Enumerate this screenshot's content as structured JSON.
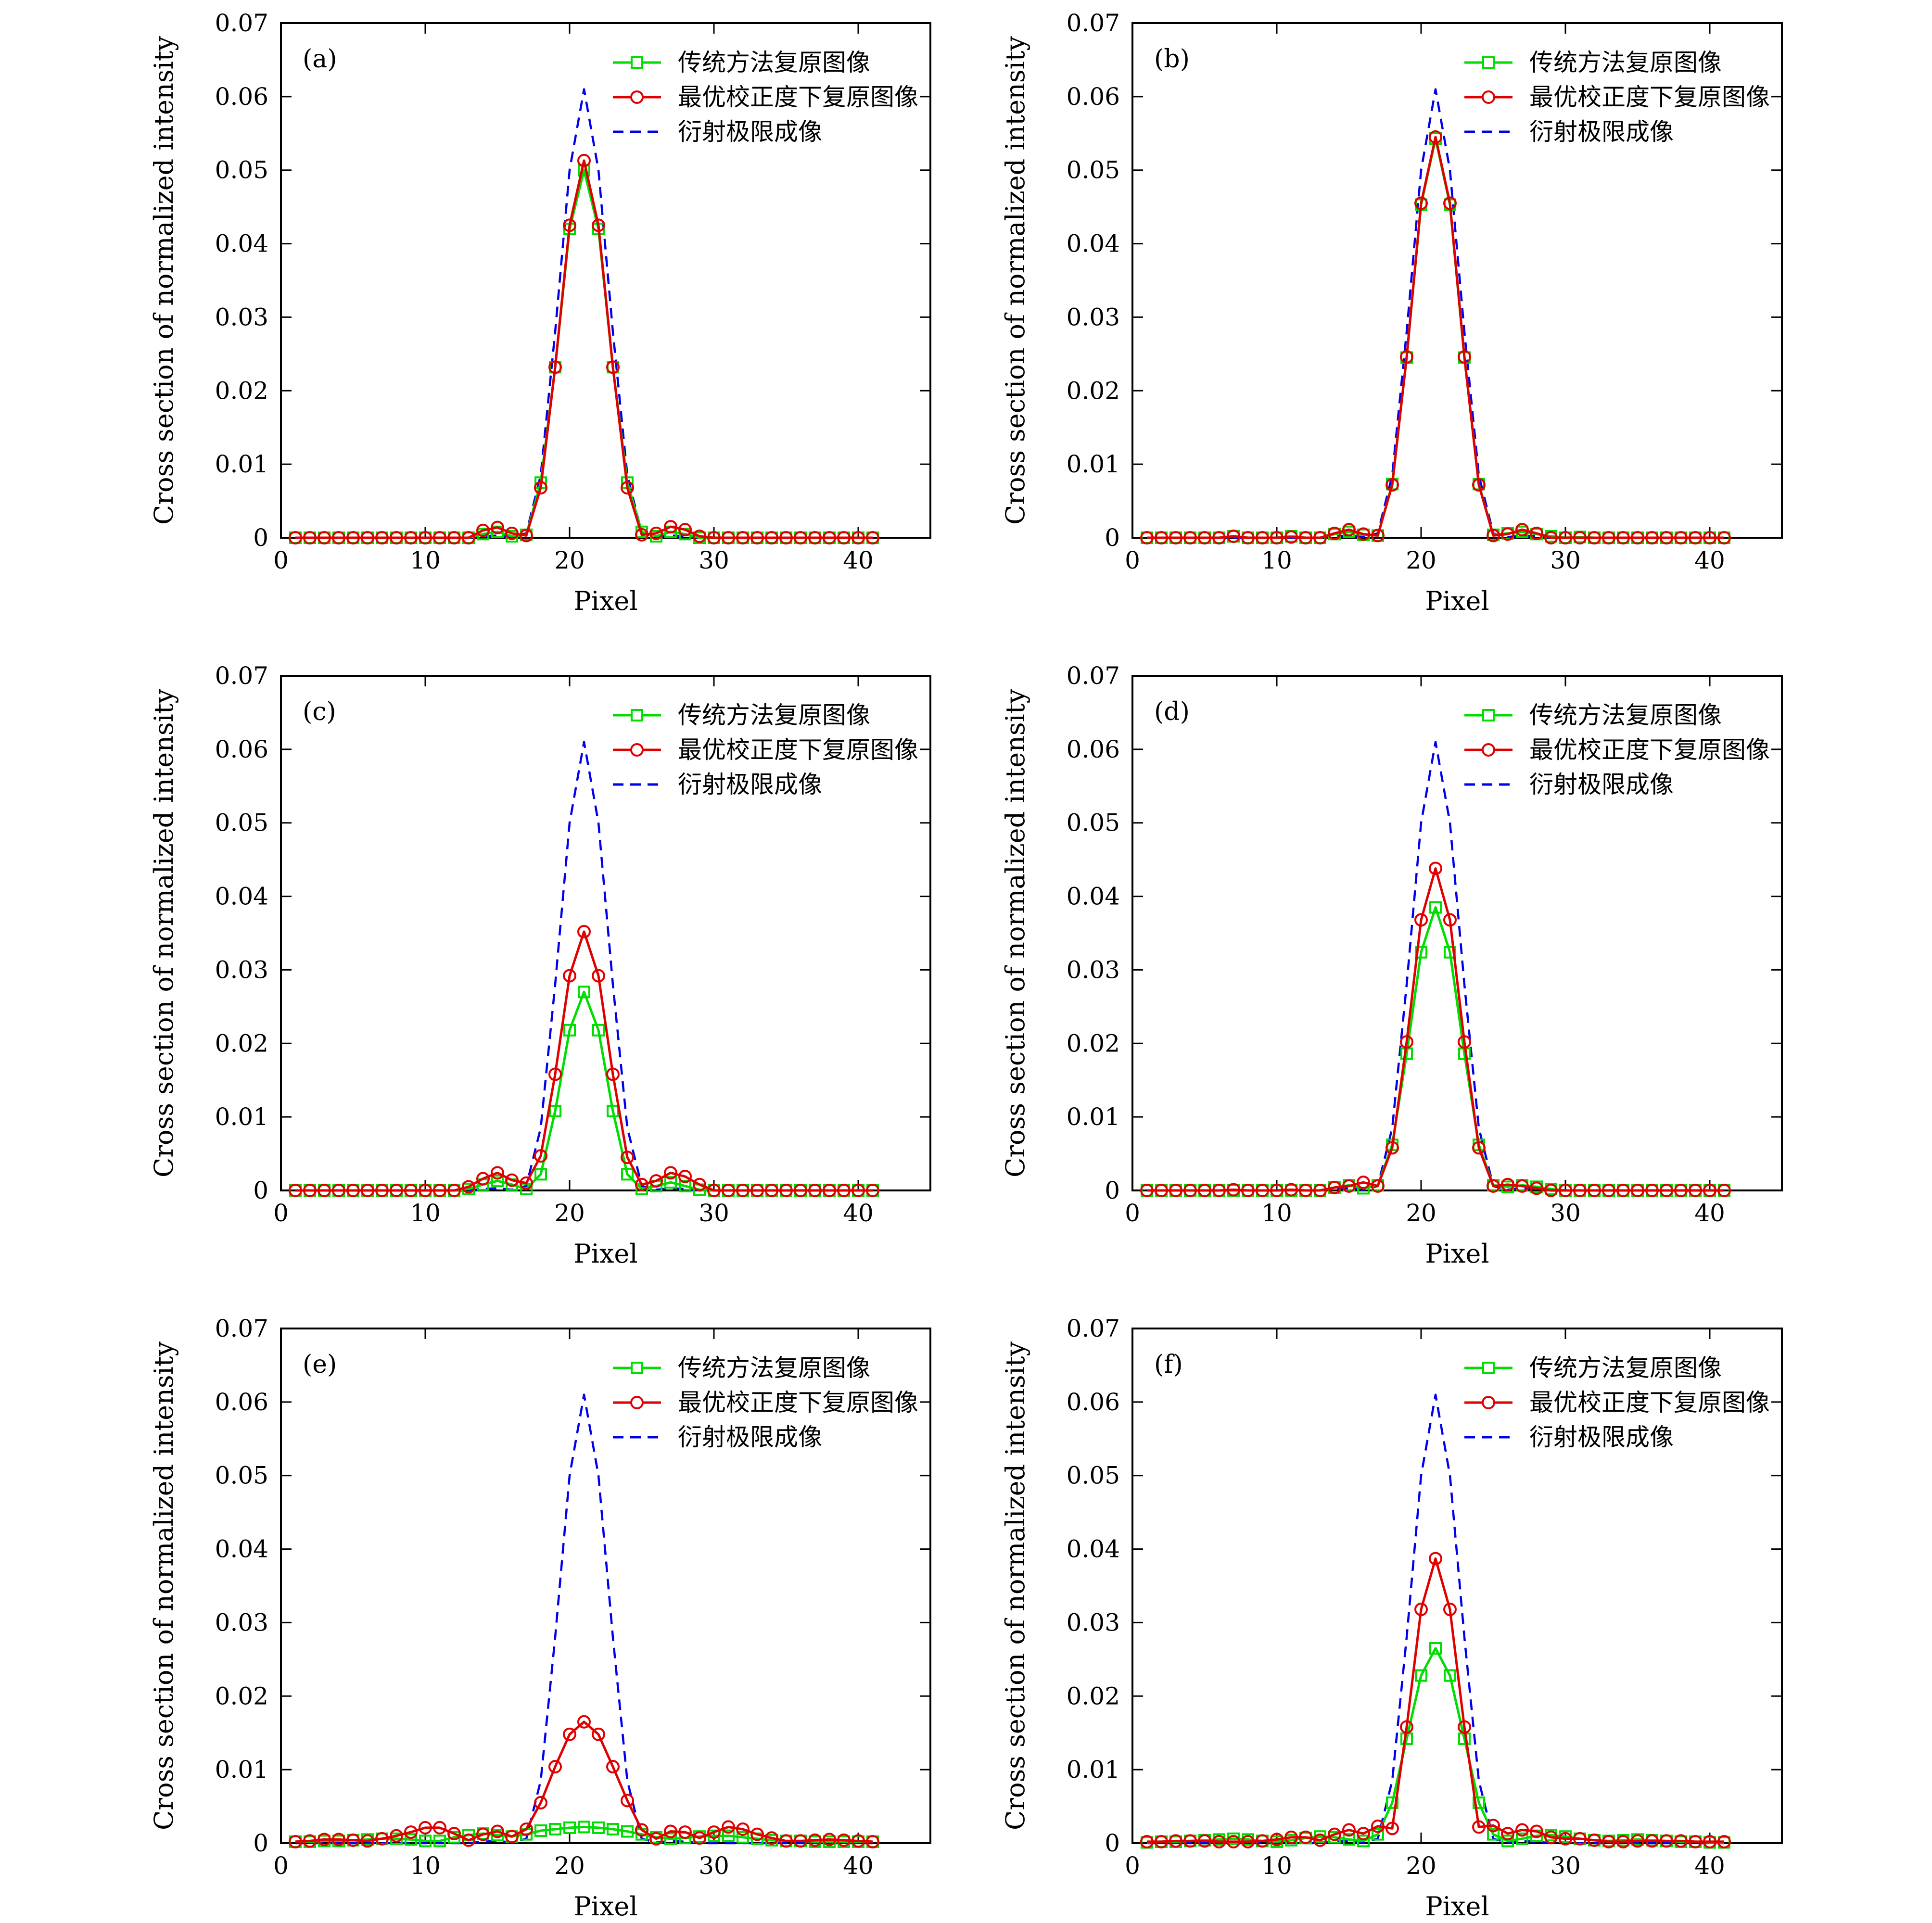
{
  "colors": {
    "traditional": "#00dd00",
    "optimal": "#e00000",
    "diffraction": "#0000ee",
    "axis": "#000000"
  },
  "figure": {
    "xlabel": "Pixel",
    "ylabel": "Cross section of normalized intensity",
    "legend": [
      "传统方法复原图像",
      "最优校正度下复原图像",
      "衍射极限成像"
    ],
    "x_ticks": [
      "0",
      "10",
      "20",
      "30",
      "40"
    ],
    "y_ticks": [
      "0",
      "0.01",
      "0.02",
      "0.03",
      "0.04",
      "0.05",
      "0.06",
      "0.07"
    ]
  },
  "chart_data": [
    {
      "type": "line",
      "panel": "(a)",
      "xlim": [
        0,
        45
      ],
      "ylim": [
        0,
        0.07
      ],
      "x": [
        1,
        2,
        3,
        4,
        5,
        6,
        7,
        8,
        9,
        10,
        11,
        12,
        13,
        14,
        15,
        16,
        17,
        18,
        19,
        20,
        21,
        22,
        23,
        24,
        25,
        26,
        27,
        28,
        29,
        30,
        31,
        32,
        33,
        34,
        35,
        36,
        37,
        38,
        39,
        40,
        41
      ],
      "series": [
        {
          "name": "传统方法复原图像",
          "values": [
            0,
            0,
            0,
            0,
            0,
            0,
            0,
            0,
            0,
            0,
            0,
            0,
            0,
            0.0005,
            0.0008,
            0.0002,
            0.0004,
            0.0075,
            0.0232,
            0.042,
            0.05,
            0.042,
            0.0232,
            0.0075,
            0.0008,
            0.0002,
            0.0008,
            0.0005,
            0,
            0,
            0,
            0,
            0,
            0,
            0,
            0,
            0,
            0,
            0,
            0,
            0
          ]
        },
        {
          "name": "最优校正度下复原图像",
          "values": [
            0,
            0,
            0,
            0,
            0,
            0,
            0,
            0,
            0,
            0,
            0,
            0,
            0,
            0.001,
            0.0014,
            0.0006,
            0.0003,
            0.0068,
            0.0232,
            0.0425,
            0.0513,
            0.0425,
            0.0232,
            0.0068,
            0.0004,
            0.0006,
            0.0015,
            0.0011,
            0.0002,
            0,
            0,
            0,
            0,
            0,
            0,
            0,
            0,
            0,
            0,
            0,
            0
          ]
        },
        {
          "name": "衍射极限成像",
          "values": [
            0,
            0,
            0,
            0,
            0,
            0,
            0,
            0,
            0,
            0,
            0,
            0,
            0,
            0.0002,
            0.0003,
            0.0001,
            0.0006,
            0.0085,
            0.028,
            0.05,
            0.061,
            0.05,
            0.028,
            0.0085,
            0.0006,
            0.0001,
            0.0003,
            0.0002,
            0,
            0,
            0,
            0,
            0,
            0,
            0,
            0,
            0,
            0,
            0,
            0,
            0
          ]
        }
      ]
    },
    {
      "type": "line",
      "panel": "(b)",
      "xlim": [
        0,
        45
      ],
      "ylim": [
        0,
        0.07
      ],
      "x": [
        1,
        2,
        3,
        4,
        5,
        6,
        7,
        8,
        9,
        10,
        11,
        12,
        13,
        14,
        15,
        16,
        17,
        18,
        19,
        20,
        21,
        22,
        23,
        24,
        25,
        26,
        27,
        28,
        29,
        30,
        31,
        32,
        33,
        34,
        35,
        36,
        37,
        38,
        39,
        40,
        41
      ],
      "series": [
        {
          "name": "传统方法复原图像",
          "values": [
            0,
            0,
            0,
            0,
            0,
            0,
            0.0002,
            0,
            0,
            0,
            0.0002,
            0,
            0,
            0.0005,
            0.0008,
            0.0004,
            0.0003,
            0.0073,
            0.0245,
            0.0453,
            0.0543,
            0.0453,
            0.0245,
            0.0073,
            0.0004,
            0.0006,
            0.0008,
            0.0005,
            0.0002,
            0,
            0.0001,
            0,
            0,
            0,
            0,
            0,
            0,
            0,
            0,
            0,
            0
          ]
        },
        {
          "name": "最优校正度下复原图像",
          "values": [
            0,
            0,
            0,
            0,
            0,
            0,
            0.0002,
            0,
            0,
            0,
            0.0001,
            0,
            0,
            0.0006,
            0.0011,
            0.0005,
            0.0003,
            0.0072,
            0.0246,
            0.0455,
            0.0545,
            0.0455,
            0.0246,
            0.0072,
            0.0003,
            0.0005,
            0.0011,
            0.0006,
            0,
            0,
            0,
            0,
            0,
            0,
            0,
            0,
            0,
            0,
            0,
            0,
            0
          ]
        },
        {
          "name": "衍射极限成像",
          "values": [
            0,
            0,
            0,
            0,
            0,
            0,
            0,
            0,
            0,
            0,
            0,
            0,
            0,
            0.0002,
            0.0003,
            0.0001,
            0.0006,
            0.0085,
            0.028,
            0.05,
            0.061,
            0.05,
            0.028,
            0.0085,
            0.0006,
            0.0001,
            0.0003,
            0.0002,
            0,
            0,
            0,
            0,
            0,
            0,
            0,
            0,
            0,
            0,
            0,
            0,
            0
          ]
        }
      ]
    },
    {
      "type": "line",
      "panel": "(c)",
      "xlim": [
        0,
        45
      ],
      "ylim": [
        0,
        0.07
      ],
      "x": [
        1,
        2,
        3,
        4,
        5,
        6,
        7,
        8,
        9,
        10,
        11,
        12,
        13,
        14,
        15,
        16,
        17,
        18,
        19,
        20,
        21,
        22,
        23,
        24,
        25,
        26,
        27,
        28,
        29,
        30,
        31,
        32,
        33,
        34,
        35,
        36,
        37,
        38,
        39,
        40,
        41
      ],
      "series": [
        {
          "name": "传统方法复原图像",
          "values": [
            0,
            0,
            0,
            0,
            0,
            0,
            0,
            0,
            0,
            0,
            0,
            0,
            0.0002,
            0.0008,
            0.0013,
            0.0008,
            0.0002,
            0.0022,
            0.0108,
            0.0218,
            0.027,
            0.0218,
            0.0108,
            0.0022,
            0.0002,
            0.0006,
            0.0011,
            0.0006,
            0.0001,
            0,
            0,
            0,
            0,
            0,
            0,
            0,
            0,
            0,
            0,
            0,
            0
          ]
        },
        {
          "name": "最优校正度下复原图像",
          "values": [
            0,
            0,
            0,
            0,
            0,
            0,
            0,
            0,
            0,
            0,
            0,
            0,
            0.0005,
            0.0016,
            0.0024,
            0.0014,
            0.001,
            0.0047,
            0.0158,
            0.0292,
            0.0352,
            0.0292,
            0.0158,
            0.0045,
            0.0008,
            0.0013,
            0.0024,
            0.0019,
            0.0008,
            0,
            0,
            0,
            0,
            0,
            0,
            0,
            0,
            0,
            0,
            0,
            0
          ]
        },
        {
          "name": "衍射极限成像",
          "values": [
            0,
            0,
            0,
            0,
            0,
            0,
            0,
            0,
            0,
            0,
            0,
            0,
            0,
            0.0002,
            0.0003,
            0.0001,
            0.0006,
            0.0085,
            0.028,
            0.05,
            0.061,
            0.05,
            0.028,
            0.0085,
            0.0006,
            0.0001,
            0.0003,
            0.0002,
            0,
            0,
            0,
            0,
            0,
            0,
            0,
            0,
            0,
            0,
            0,
            0,
            0
          ]
        }
      ]
    },
    {
      "type": "line",
      "panel": "(d)",
      "xlim": [
        0,
        45
      ],
      "ylim": [
        0,
        0.07
      ],
      "x": [
        1,
        2,
        3,
        4,
        5,
        6,
        7,
        8,
        9,
        10,
        11,
        12,
        13,
        14,
        15,
        16,
        17,
        18,
        19,
        20,
        21,
        22,
        23,
        24,
        25,
        26,
        27,
        28,
        29,
        30,
        31,
        32,
        33,
        34,
        35,
        36,
        37,
        38,
        39,
        40,
        41
      ],
      "series": [
        {
          "name": "传统方法复原图像",
          "values": [
            0,
            0,
            0,
            0,
            0,
            0,
            0,
            0,
            0,
            0,
            0,
            0,
            0,
            0.0004,
            0.0007,
            0.0003,
            0.0007,
            0.0062,
            0.0186,
            0.0324,
            0.0385,
            0.0324,
            0.0186,
            0.0062,
            0.0007,
            0.0005,
            0.0007,
            0.0005,
            0.0002,
            0,
            0,
            0,
            0,
            0,
            0,
            0,
            0,
            0,
            0,
            0,
            0
          ]
        },
        {
          "name": "最优校正度下复原图像",
          "values": [
            0,
            0,
            0,
            0,
            0,
            0,
            0.0001,
            0,
            0,
            0,
            0.0001,
            0,
            0,
            0.0004,
            0.0006,
            0.0011,
            0.0006,
            0.0058,
            0.0202,
            0.0368,
            0.0438,
            0.0368,
            0.0202,
            0.0058,
            0.0006,
            0.0008,
            0.0006,
            0.0003,
            0,
            0,
            0,
            0,
            0,
            0,
            0,
            0,
            0,
            0,
            0,
            0,
            0
          ]
        },
        {
          "name": "衍射极限成像",
          "values": [
            0,
            0,
            0,
            0,
            0,
            0,
            0,
            0,
            0,
            0,
            0,
            0,
            0,
            0.0002,
            0.0003,
            0.0001,
            0.0006,
            0.0085,
            0.028,
            0.05,
            0.061,
            0.05,
            0.028,
            0.0085,
            0.0006,
            0.0001,
            0.0003,
            0.0002,
            0,
            0,
            0,
            0,
            0,
            0,
            0,
            0,
            0,
            0,
            0,
            0,
            0
          ]
        }
      ]
    },
    {
      "type": "line",
      "panel": "(e)",
      "xlim": [
        0,
        45
      ],
      "ylim": [
        0,
        0.07
      ],
      "x": [
        1,
        2,
        3,
        4,
        5,
        6,
        7,
        8,
        9,
        10,
        11,
        12,
        13,
        14,
        15,
        16,
        17,
        18,
        19,
        20,
        21,
        22,
        23,
        24,
        25,
        26,
        27,
        28,
        29,
        30,
        31,
        32,
        33,
        34,
        35,
        36,
        37,
        38,
        39,
        40,
        41
      ],
      "series": [
        {
          "name": "传统方法复原图像",
          "values": [
            0.0002,
            0.0002,
            0.0003,
            0.0003,
            0.0004,
            0.0005,
            0.0006,
            0.0006,
            0.0005,
            0.0003,
            0.0003,
            0.0008,
            0.0011,
            0.0013,
            0.0011,
            0.0009,
            0.0012,
            0.0017,
            0.0019,
            0.0021,
            0.0022,
            0.0021,
            0.0019,
            0.0016,
            0.0012,
            0.0008,
            0.0006,
            0.0007,
            0.0009,
            0.001,
            0.001,
            0.0008,
            0.0006,
            0.0004,
            0.0003,
            0.0003,
            0.0002,
            0.0002,
            0.0002,
            0.0002,
            0.0002
          ]
        },
        {
          "name": "最优校正度下复原图像",
          "values": [
            0.0002,
            0.0003,
            0.0005,
            0.0005,
            0.0004,
            0.0003,
            0.0006,
            0.001,
            0.0015,
            0.0021,
            0.0021,
            0.0013,
            0.0004,
            0.0012,
            0.0016,
            0.0009,
            0.0019,
            0.0055,
            0.0104,
            0.0148,
            0.0165,
            0.0148,
            0.0104,
            0.0058,
            0.0018,
            0.0006,
            0.0016,
            0.0015,
            0.0007,
            0.0015,
            0.0022,
            0.0019,
            0.0012,
            0.0007,
            0.0003,
            0.0003,
            0.0004,
            0.0005,
            0.0004,
            0.0003,
            0.0002
          ]
        },
        {
          "name": "衍射极限成像",
          "values": [
            0,
            0,
            0,
            0,
            0,
            0,
            0,
            0,
            0,
            0,
            0,
            0,
            0,
            0.0002,
            0.0003,
            0.0001,
            0.0006,
            0.0085,
            0.028,
            0.05,
            0.061,
            0.05,
            0.028,
            0.0085,
            0.0006,
            0.0001,
            0.0003,
            0.0002,
            0,
            0,
            0,
            0,
            0,
            0,
            0,
            0,
            0,
            0,
            0,
            0,
            0
          ]
        }
      ]
    },
    {
      "type": "line",
      "panel": "(f)",
      "xlim": [
        0,
        45
      ],
      "ylim": [
        0,
        0.07
      ],
      "x": [
        1,
        2,
        3,
        4,
        5,
        6,
        7,
        8,
        9,
        10,
        11,
        12,
        13,
        14,
        15,
        16,
        17,
        18,
        19,
        20,
        21,
        22,
        23,
        24,
        25,
        26,
        27,
        28,
        29,
        30,
        31,
        32,
        33,
        34,
        35,
        36,
        37,
        38,
        39,
        40,
        41
      ],
      "series": [
        {
          "name": "传统方法复原图像",
          "values": [
            0.0001,
            0.0002,
            0.0002,
            0.0003,
            0.0004,
            0.0005,
            0.0006,
            0.0005,
            0.0003,
            0.0002,
            0.0004,
            0.0007,
            0.0009,
            0.0008,
            0.0005,
            0.0003,
            0.0012,
            0.0055,
            0.0142,
            0.0228,
            0.0265,
            0.0228,
            0.0142,
            0.0055,
            0.0012,
            0.0003,
            0.0006,
            0.001,
            0.0011,
            0.0009,
            0.0006,
            0.0004,
            0.0003,
            0.0004,
            0.0005,
            0.0004,
            0.0003,
            0.0002,
            0.0002,
            0.0001,
            0.0001
          ]
        },
        {
          "name": "最优校正度下复原图像",
          "values": [
            0.0002,
            0.0002,
            0.0003,
            0.0003,
            0.0003,
            0.0002,
            0.0002,
            0.0002,
            0.0003,
            0.0005,
            0.0008,
            0.0008,
            0.0004,
            0.0012,
            0.0018,
            0.0013,
            0.0023,
            0.002,
            0.0158,
            0.0318,
            0.0387,
            0.0318,
            0.0158,
            0.0022,
            0.0024,
            0.0013,
            0.0018,
            0.0016,
            0.0008,
            0.0006,
            0.0006,
            0.0004,
            0.0002,
            0.0002,
            0.0003,
            0.0003,
            0.0003,
            0.0003,
            0.0002,
            0.0002,
            0.0002
          ]
        },
        {
          "name": "衍射极限成像",
          "values": [
            0,
            0,
            0,
            0,
            0,
            0,
            0,
            0,
            0,
            0,
            0,
            0,
            0,
            0.0002,
            0.0003,
            0.0001,
            0.0006,
            0.0085,
            0.028,
            0.05,
            0.061,
            0.05,
            0.028,
            0.0085,
            0.0006,
            0.0001,
            0.0003,
            0.0002,
            0,
            0,
            0,
            0,
            0,
            0,
            0,
            0,
            0,
            0,
            0,
            0,
            0
          ]
        }
      ]
    }
  ]
}
